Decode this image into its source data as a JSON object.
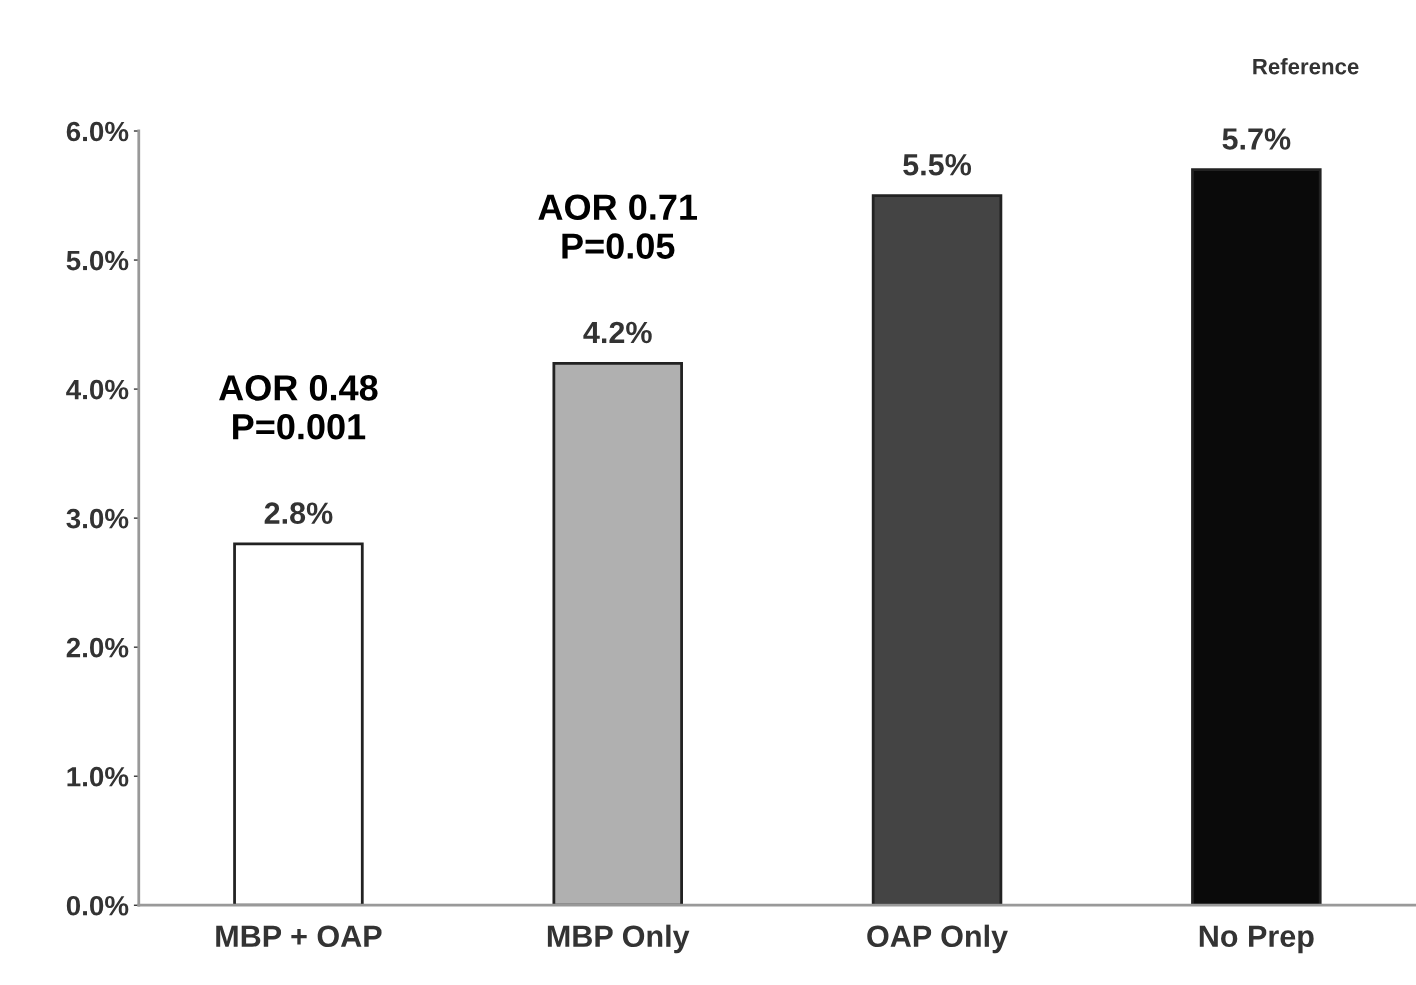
{
  "chart_data": {
    "type": "bar",
    "categories": [
      "MBP + OAP",
      "MBP Only",
      "OAP Only",
      "No Prep"
    ],
    "values": [
      2.8,
      4.2,
      5.5,
      5.7
    ],
    "colors": [
      "#ffffff",
      "#b0b0b0",
      "#444444",
      "#0a0a0a"
    ],
    "value_labels": [
      "2.8%",
      "4.2%",
      "5.5%",
      "5.7%"
    ],
    "ylim": [
      0,
      6
    ],
    "yticks": [
      {
        "value": 0,
        "label": "0.0%"
      },
      {
        "value": 1,
        "label": "1.0%"
      },
      {
        "value": 2,
        "label": "2.0%"
      },
      {
        "value": 3,
        "label": "3.0%"
      },
      {
        "value": 4,
        "label": "4.0%"
      },
      {
        "value": 5,
        "label": "5.0%"
      },
      {
        "value": 6,
        "label": "6.0%"
      }
    ],
    "annotations": [
      {
        "text": "AOR 0.48\nP=0.001",
        "x": "MBP + OAP",
        "y": 2.8
      },
      {
        "text": "AOR 0.71\nP=0.05",
        "x": "MBP Only",
        "y": 4.2
      },
      "Reference"
    ],
    "grid": false,
    "legend": false
  }
}
